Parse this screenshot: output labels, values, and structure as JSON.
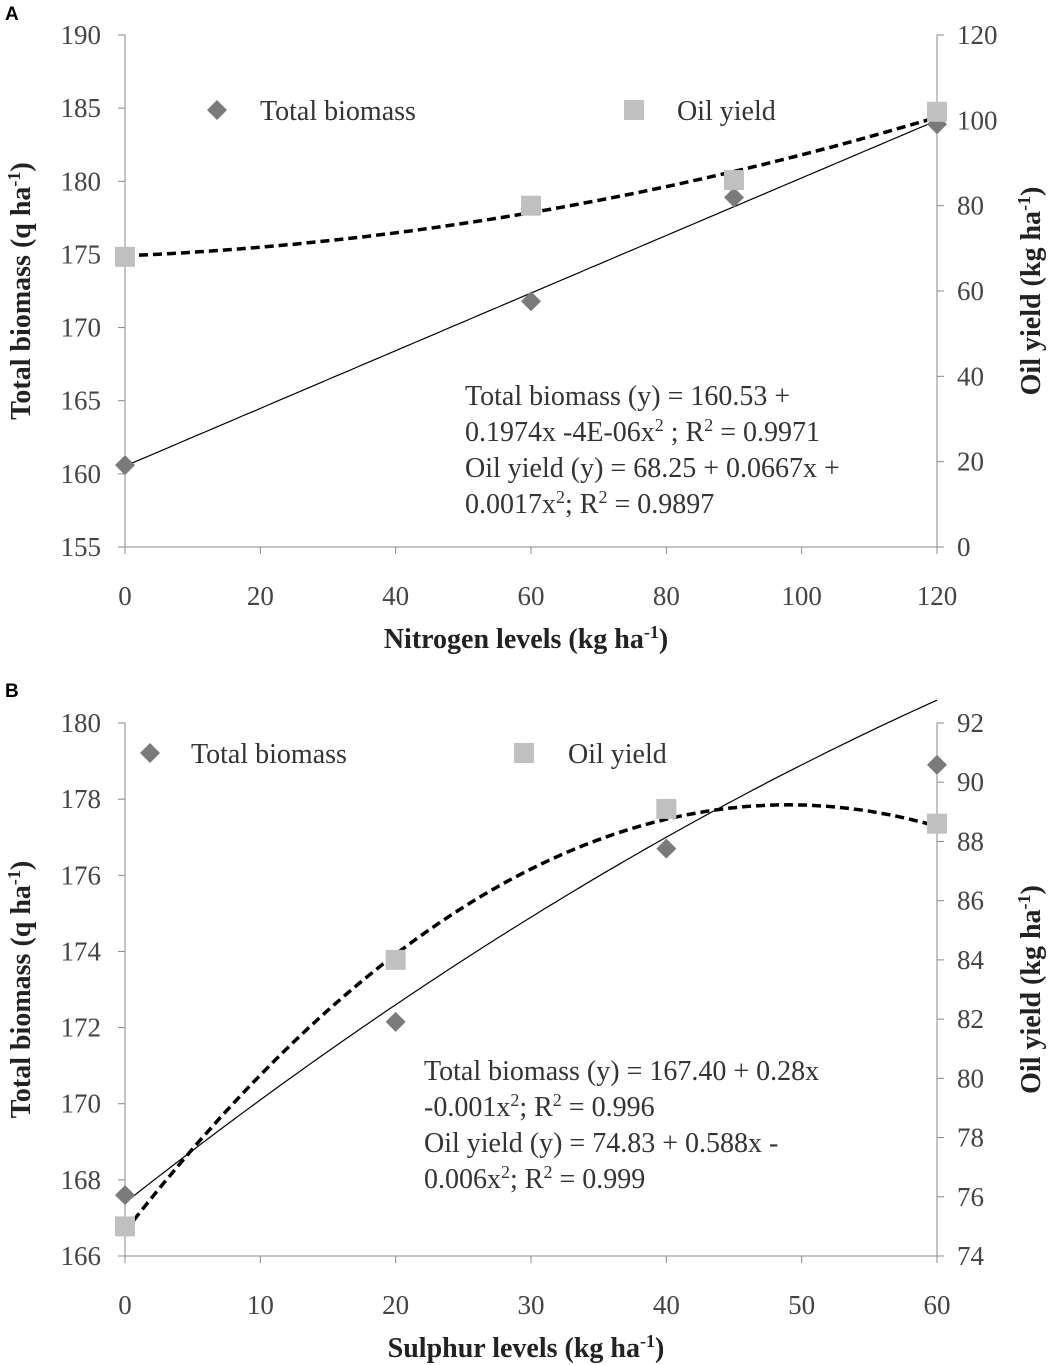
{
  "chart_data": [
    {
      "panel_label": "A",
      "type": "scatter",
      "xlabel": "Nitrogen levels (kg ha",
      "xlabel_sup": "-1",
      "xlabel_end": ")",
      "ylabel_left": "Total biomass (q ha",
      "ylabel_left_sup": "-1",
      "ylabel_left_end": ")",
      "ylabel_right": "Oil yield (kg ha",
      "ylabel_right_sup": "-1",
      "ylabel_right_end": ")",
      "xlim": [
        0,
        120
      ],
      "ylim_left": [
        155,
        190
      ],
      "ylim_right": [
        0,
        120
      ],
      "x_ticks": [
        0,
        20,
        40,
        60,
        80,
        100,
        120
      ],
      "y_left_ticks": [
        155,
        160,
        165,
        170,
        175,
        180,
        185,
        190
      ],
      "y_right_ticks": [
        0,
        20,
        40,
        60,
        80,
        100,
        120
      ],
      "legend": {
        "biomass": "Total biomass",
        "oil": "Oil yield"
      },
      "series": [
        {
          "name": "Total biomass",
          "axis": "left",
          "marker": "diamond",
          "color": "#7a7a7a",
          "x": [
            0,
            60,
            90,
            120
          ],
          "y": [
            160.6,
            171.8,
            178.9,
            183.9
          ]
        },
        {
          "name": "Oil yield",
          "axis": "right",
          "marker": "square",
          "color": "#c0c0c0",
          "x": [
            0,
            60,
            90,
            120
          ],
          "y": [
            68,
            80,
            86,
            102
          ]
        }
      ],
      "trendlines": [
        {
          "series": "Total biomass",
          "axis": "left",
          "style": "solid",
          "color": "#000000",
          "coef": [
            160.53,
            0.1974,
            -4e-06
          ]
        },
        {
          "series": "Oil yield",
          "axis": "right",
          "style": "dashed",
          "color": "#000000",
          "coef": [
            68.25,
            0.0667,
            0.0017
          ]
        }
      ],
      "annotation": [
        {
          "text": "Total biomass (y) = 160.53 + ",
          "sup": ""
        },
        {
          "text": "0.1974x -4E-06x",
          "sup": "2",
          "after": " ; R",
          "sup2": "2",
          "after2": " = 0.9971"
        },
        {
          "text": "Oil yield (y) = 68.25 + 0.0667x +",
          "sup": ""
        },
        {
          "text": "0.0017x",
          "sup": "2",
          "after": "; R",
          "sup2": "2",
          "after2": " = 0.9897"
        }
      ]
    },
    {
      "panel_label": "B",
      "type": "scatter",
      "xlabel": "Sulphur levels (kg ha",
      "xlabel_sup": "-1",
      "xlabel_end": ")",
      "ylabel_left": "Total biomass (q ha",
      "ylabel_left_sup": "-1",
      "ylabel_left_end": ")",
      "ylabel_right": "Oil yield (kg ha",
      "ylabel_right_sup": "-1",
      "ylabel_right_end": ")",
      "xlim": [
        0,
        60
      ],
      "ylim_left": [
        166,
        180
      ],
      "ylim_right": [
        74,
        92
      ],
      "x_ticks": [
        0,
        10,
        20,
        30,
        40,
        50,
        60
      ],
      "y_left_ticks": [
        166,
        168,
        170,
        172,
        174,
        176,
        178,
        180
      ],
      "y_right_ticks": [
        74,
        76,
        78,
        80,
        82,
        84,
        86,
        88,
        90,
        92
      ],
      "legend": {
        "biomass": "Total biomass",
        "oil": "Oil yield"
      },
      "series": [
        {
          "name": "Total biomass",
          "axis": "left",
          "marker": "diamond",
          "color": "#7a7a7a",
          "x": [
            0,
            20,
            40,
            60
          ],
          "y": [
            167.6,
            172.15,
            176.7,
            178.9
          ]
        },
        {
          "name": "Oil yield",
          "axis": "right",
          "marker": "square",
          "color": "#c0c0c0",
          "x": [
            0,
            20,
            40,
            60
          ],
          "y": [
            75.0,
            84.0,
            89.1,
            88.6
          ]
        }
      ],
      "trendlines": [
        {
          "series": "Total biomass",
          "axis": "left",
          "style": "solid",
          "color": "#000000",
          "coef": [
            167.4,
            0.28,
            -0.001
          ]
        },
        {
          "series": "Oil yield",
          "axis": "right",
          "style": "dashed",
          "color": "#000000",
          "coef": [
            74.83,
            0.588,
            -0.006
          ]
        }
      ],
      "annotation": [
        {
          "text": "Total biomass (y) = 167.40 + 0.28x",
          "sup": ""
        },
        {
          "text": "-0.001x",
          "sup": "2",
          "after": "; R",
          "sup2": "2",
          "after2": " = 0.996"
        },
        {
          "text": "Oil yield (y) = 74.83 + 0.588x -",
          "sup": ""
        },
        {
          "text": "0.006x",
          "sup": "2",
          "after": "; R",
          "sup2": "2",
          "after2": " = 0.999"
        }
      ]
    }
  ]
}
